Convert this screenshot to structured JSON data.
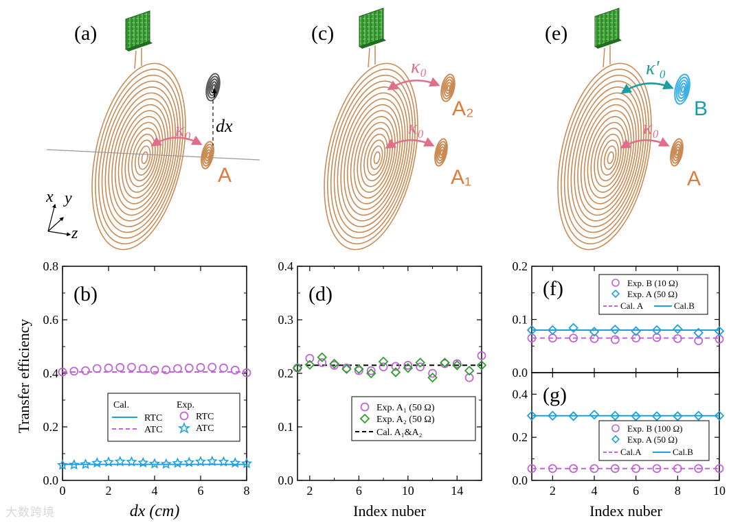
{
  "colors": {
    "coil": "#c98a54",
    "pcb": "#2f8f2f",
    "arrow_pink": "#e0708a",
    "arrow_teal": "#1a9e9e",
    "label_orange": "#e07a3c",
    "label_teal": "#1a9e9e",
    "purple": "#c065d6",
    "blue": "#1ea0dd",
    "green": "#2e9e2e",
    "black": "#000000"
  },
  "illustrations": {
    "a": {
      "panel_label": "(a)",
      "coupling": "κ₀",
      "distance": "dx",
      "resonator": "A",
      "axes": {
        "x": "x",
        "y": "y",
        "z": "z"
      }
    },
    "c": {
      "panel_label": "(c)",
      "coupling_top": "κ₀",
      "coupling_bottom": "κ₀",
      "resonator_top": "A₂",
      "resonator_bottom": "A₁"
    },
    "e": {
      "panel_label": "(e)",
      "coupling_top": "κ′₀",
      "coupling_bottom": "κ₀",
      "resonator_top": "B",
      "resonator_bottom": "A"
    }
  },
  "chart_data": [
    {
      "id": "b",
      "type": "scatter",
      "panel_label": "(b)",
      "xlabel": "dx (cm)",
      "ylabel": "Transfer efficiency",
      "xlim": [
        0,
        8
      ],
      "ylim": [
        0,
        0.8
      ],
      "xticks": [
        0,
        2,
        4,
        6,
        8
      ],
      "yticks": [
        0.0,
        0.2,
        0.4,
        0.6,
        0.8
      ],
      "xtick_labels": [
        "0",
        "2",
        "4",
        "6",
        "8"
      ],
      "ytick_labels": [
        "0.0",
        "0.2",
        "0.4",
        "0.6",
        "0.8"
      ],
      "legend": {
        "position": "bottom-right",
        "title_cal": "Cal.",
        "title_exp": "Exp.",
        "entries": [
          "RTC",
          "ATC",
          "RTC",
          "ATC"
        ]
      },
      "series": [
        {
          "name": "Cal. RTC",
          "style": "solid",
          "color": "#1ea0dd",
          "x": [
            0,
            8
          ],
          "y": [
            0.06,
            0.06
          ]
        },
        {
          "name": "Cal. ATC",
          "style": "dashed",
          "color": "#c065d6",
          "x": [
            0,
            8
          ],
          "y": [
            0.405,
            0.405
          ]
        },
        {
          "name": "Exp. RTC",
          "marker": "circle",
          "color": "#c065d6",
          "x": [
            0,
            0.5,
            1,
            1.5,
            2,
            2.5,
            3,
            3.5,
            4,
            4.5,
            5,
            5.5,
            6,
            6.5,
            7,
            7.5,
            8
          ],
          "y": [
            0.405,
            0.408,
            0.41,
            0.418,
            0.42,
            0.422,
            0.423,
            0.418,
            0.412,
            0.413,
            0.418,
            0.42,
            0.422,
            0.423,
            0.42,
            0.412,
            0.402
          ]
        },
        {
          "name": "Exp. ATC",
          "marker": "star",
          "color": "#1ea0dd",
          "x": [
            0,
            0.5,
            1,
            1.5,
            2,
            2.5,
            3,
            3.5,
            4,
            4.5,
            5,
            5.5,
            6,
            6.5,
            7,
            7.5,
            8
          ],
          "y": [
            0.057,
            0.058,
            0.06,
            0.065,
            0.068,
            0.07,
            0.069,
            0.066,
            0.062,
            0.061,
            0.064,
            0.067,
            0.07,
            0.071,
            0.069,
            0.065,
            0.063
          ]
        }
      ]
    },
    {
      "id": "d",
      "type": "scatter",
      "panel_label": "(d)",
      "xlabel": "Index nuber",
      "ylabel": "",
      "xlim": [
        1,
        16
      ],
      "ylim": [
        0,
        0.4
      ],
      "xticks": [
        2,
        6,
        10,
        14
      ],
      "yticks": [
        0.0,
        0.1,
        0.2,
        0.3,
        0.4
      ],
      "xtick_labels": [
        "2",
        "6",
        "10",
        "14"
      ],
      "ytick_labels": [
        "0.0",
        "0.1",
        "0.2",
        "0.3",
        "0.4"
      ],
      "minor_xticks": [
        4,
        8,
        12,
        16
      ],
      "legend": {
        "position": "bottom-right",
        "entries": [
          "Exp. A₁ (50 Ω)",
          "Exp. A₂ (50 Ω)",
          "Cal. A₁&A₂"
        ]
      },
      "series": [
        {
          "name": "Exp. A1 (50 Ω)",
          "marker": "circle",
          "color": "#c065d6",
          "x": [
            1,
            2,
            3,
            4,
            5,
            6,
            7,
            8,
            9,
            10,
            11,
            12,
            13,
            14,
            15,
            16
          ],
          "y": [
            0.21,
            0.228,
            0.22,
            0.215,
            0.21,
            0.205,
            0.205,
            0.212,
            0.213,
            0.215,
            0.212,
            0.2,
            0.218,
            0.218,
            0.192,
            0.233
          ]
        },
        {
          "name": "Exp. A2 (50 Ω)",
          "marker": "diamond",
          "color": "#2e9e2e",
          "x": [
            1,
            2,
            3,
            4,
            5,
            6,
            7,
            8,
            9,
            10,
            11,
            12,
            13,
            14,
            15,
            16
          ],
          "y": [
            0.21,
            0.216,
            0.23,
            0.218,
            0.208,
            0.208,
            0.2,
            0.222,
            0.202,
            0.21,
            0.22,
            0.192,
            0.22,
            0.215,
            0.205,
            0.215
          ]
        },
        {
          "name": "Cal. A1&A2",
          "style": "dashed",
          "color": "#000000",
          "x": [
            1,
            16
          ],
          "y": [
            0.215,
            0.215
          ]
        }
      ]
    },
    {
      "id": "f",
      "type": "scatter",
      "panel_label": "(f)",
      "xlabel": "",
      "ylabel": "",
      "xlim": [
        1,
        10
      ],
      "ylim": [
        0,
        0.2
      ],
      "xticks": [
        2,
        4,
        6,
        8,
        10
      ],
      "yticks": [
        0.0,
        0.1,
        0.2
      ],
      "xtick_labels": [],
      "ytick_labels": [
        "0.0",
        "0.1",
        "0.2"
      ],
      "legend": {
        "position": "top-right",
        "entries": [
          "Exp. B (10 Ω)",
          "Exp. A (50 Ω)",
          "Cal. A",
          "Cal.B"
        ]
      },
      "series": [
        {
          "name": "Exp. B (10 Ω)",
          "marker": "circle",
          "color": "#c065d6",
          "x": [
            1,
            2,
            3,
            4,
            5,
            6,
            7,
            8,
            9,
            10
          ],
          "y": [
            0.065,
            0.065,
            0.065,
            0.064,
            0.062,
            0.065,
            0.066,
            0.064,
            0.06,
            0.063
          ]
        },
        {
          "name": "Exp. A (50 Ω)",
          "marker": "diamond",
          "color": "#1ea0dd",
          "x": [
            1,
            2,
            3,
            4,
            5,
            6,
            7,
            8,
            9,
            10
          ],
          "y": [
            0.08,
            0.08,
            0.084,
            0.077,
            0.081,
            0.078,
            0.08,
            0.082,
            0.075,
            0.078
          ]
        },
        {
          "name": "Cal. A",
          "style": "dashed",
          "color": "#c065d6",
          "x": [
            1,
            10
          ],
          "y": [
            0.065,
            0.065
          ]
        },
        {
          "name": "Cal.B",
          "style": "solid",
          "color": "#1ea0dd",
          "x": [
            1,
            10
          ],
          "y": [
            0.08,
            0.08
          ]
        }
      ]
    },
    {
      "id": "g",
      "type": "scatter",
      "panel_label": "(g)",
      "xlabel": "Index nuber",
      "ylabel": "",
      "xlim": [
        1,
        10
      ],
      "ylim": [
        0,
        0.5
      ],
      "xticks": [
        2,
        4,
        6,
        8,
        10
      ],
      "yticks": [
        0.0,
        0.2,
        0.4
      ],
      "xtick_labels": [
        "2",
        "4",
        "6",
        "8",
        "10"
      ],
      "ytick_labels": [
        "0.0",
        "0.2",
        "0.4"
      ],
      "legend": {
        "position": "bottom-right",
        "entries": [
          "Exp. B (100 Ω)",
          "Exp. A (50 Ω)",
          "Cal.A",
          "Cal.B"
        ]
      },
      "series": [
        {
          "name": "Exp. B (100 Ω)",
          "marker": "circle",
          "color": "#c065d6",
          "x": [
            1,
            2,
            3,
            4,
            5,
            6,
            7,
            8,
            9,
            10
          ],
          "y": [
            0.055,
            0.055,
            0.055,
            0.055,
            0.055,
            0.055,
            0.055,
            0.055,
            0.055,
            0.055
          ]
        },
        {
          "name": "Exp. A (50 Ω)",
          "marker": "diamond",
          "color": "#1ea0dd",
          "x": [
            1,
            2,
            3,
            4,
            5,
            6,
            7,
            8,
            9,
            10
          ],
          "y": [
            0.3,
            0.3,
            0.298,
            0.305,
            0.3,
            0.298,
            0.298,
            0.298,
            0.3,
            0.3
          ]
        },
        {
          "name": "Cal.A",
          "style": "dashed",
          "color": "#c065d6",
          "x": [
            1,
            10
          ],
          "y": [
            0.055,
            0.055
          ]
        },
        {
          "name": "Cal.B",
          "style": "solid",
          "color": "#1ea0dd",
          "x": [
            1,
            10
          ],
          "y": [
            0.3,
            0.3
          ]
        }
      ]
    }
  ],
  "watermark": "大数跨境"
}
